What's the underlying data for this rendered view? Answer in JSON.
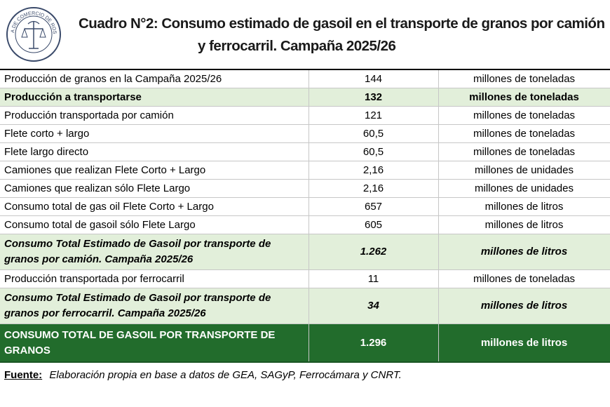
{
  "header": {
    "logo_text": "BOLSA DE COMERCIO DE ROSARIO",
    "title_line1": "Cuadro N°2: Consumo estimado de gasoil en el transporte de granos por camión",
    "title_line2": "y ferrocarril. Campaña 2025/26"
  },
  "rows": [
    {
      "label": "Producción de granos en la Campaña 2025/26",
      "value": "144",
      "unit": "millones de toneladas"
    },
    {
      "label": "Producción a transportarse",
      "value": "132",
      "unit": "millones de toneladas"
    },
    {
      "label": "Producción transportada por camión",
      "value": "121",
      "unit": "millones de toneladas"
    },
    {
      "label": "Flete corto + largo",
      "value": "60,5",
      "unit": "millones de toneladas"
    },
    {
      "label": "Flete largo directo",
      "value": "60,5",
      "unit": "millones de toneladas"
    },
    {
      "label": "Camiones que realizan Flete Corto + Largo",
      "value": "2,16",
      "unit": "millones de unidades"
    },
    {
      "label": "Camiones que realizan sólo Flete Largo",
      "value": "2,16",
      "unit": "millones de unidades"
    },
    {
      "label": "Consumo total de gas oil Flete Corto + Largo",
      "value": "657",
      "unit": "millones de litros"
    },
    {
      "label": "Consumo total de gasoil sólo Flete Largo",
      "value": "605",
      "unit": "millones de litros"
    },
    {
      "label": "Consumo Total Estimado de Gasoil por transporte de granos por camión. Campaña 2025/26",
      "value": "1.262",
      "unit": "millones de litros"
    },
    {
      "label": "Producción transportada por ferrocarril",
      "value": "11",
      "unit": "millones de toneladas"
    },
    {
      "label": "Consumo Total Estimado de Gasoil por transporte de granos por ferrocarril. Campaña 2025/26",
      "value": "34",
      "unit": "millones de litros"
    },
    {
      "label": "CONSUMO TOTAL DE GASOIL POR TRANSPORTE DE GRANOS",
      "value": "1.296",
      "unit": "millones de litros"
    }
  ],
  "source": {
    "key": "Fuente:",
    "text": "Elaboración propia en base a datos de GEA, SAGyP,  Ferrocámara y CNRT."
  },
  "colors": {
    "highlight": "#e2efda",
    "total": "#226c2c"
  }
}
